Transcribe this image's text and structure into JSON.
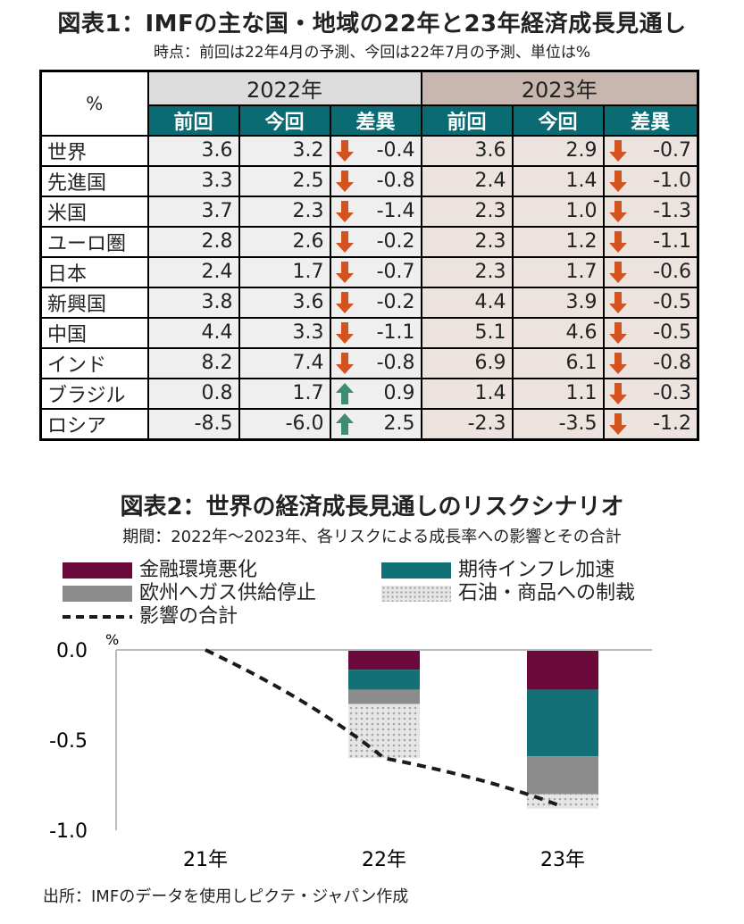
{
  "table": {
    "title": "図表1：IMFの主な国・地域の22年と23年経済成長見通し",
    "subtitle": "時点：前回は22年4月の予測、今回は22年7月の予測、単位は%",
    "unit_header": "%",
    "years": [
      "2022年",
      "2023年"
    ],
    "subheaders": [
      "前回",
      "今回",
      "差異",
      "前回",
      "今回",
      "差異"
    ],
    "rows": [
      {
        "label": "世界",
        "v": [
          "3.6",
          "3.2",
          "-0.4",
          "3.6",
          "2.9",
          "-0.7"
        ]
      },
      {
        "label": "先進国",
        "v": [
          "3.3",
          "2.5",
          "-0.8",
          "2.4",
          "1.4",
          "-1.0"
        ]
      },
      {
        "label": "米国",
        "v": [
          "3.7",
          "2.3",
          "-1.4",
          "2.3",
          "1.0",
          "-1.3"
        ]
      },
      {
        "label": "ユーロ圏",
        "v": [
          "2.8",
          "2.6",
          "-0.2",
          "2.3",
          "1.2",
          "-1.1"
        ]
      },
      {
        "label": "日本",
        "v": [
          "2.4",
          "1.7",
          "-0.7",
          "2.3",
          "1.7",
          "-0.6"
        ]
      },
      {
        "label": "新興国",
        "v": [
          "3.8",
          "3.6",
          "-0.2",
          "4.4",
          "3.9",
          "-0.5"
        ]
      },
      {
        "label": "中国",
        "v": [
          "4.4",
          "3.3",
          "-1.1",
          "5.1",
          "4.6",
          "-0.5"
        ]
      },
      {
        "label": "インド",
        "v": [
          "8.2",
          "7.4",
          "-0.8",
          "6.9",
          "6.1",
          "-0.8"
        ]
      },
      {
        "label": "ブラジル",
        "v": [
          "0.8",
          "1.7",
          "0.9",
          "1.4",
          "1.1",
          "-0.3"
        ]
      },
      {
        "label": "ロシア",
        "v": [
          "-8.5",
          "-6.0",
          "2.5",
          "-2.3",
          "-3.5",
          "-1.2"
        ]
      }
    ],
    "colors": {
      "header": "#0b6b73",
      "year2022_bg": "#dcdcdc",
      "year2023_bg": "#c7b7ae",
      "down_arrow": "#d4521e",
      "up_arrow": "#3f8c74"
    }
  },
  "chart_data": {
    "type": "bar",
    "title": "図表2：世界の経済成長見通しのリスクシナリオ",
    "subtitle": "期間：2022年～2023年、各リスクによる成長率への影響とその合計",
    "categories": [
      "21年",
      "22年",
      "23年"
    ],
    "ylabel": "%",
    "ylim": [
      -1.0,
      0.0
    ],
    "yticks": [
      "0.0",
      "-0.5",
      "-1.0"
    ],
    "stacked": true,
    "series": [
      {
        "name": "金融環境悪化",
        "color": "#6b0a3a",
        "values": [
          0,
          -0.11,
          -0.22
        ]
      },
      {
        "name": "期待インフレ加速",
        "color": "#127076",
        "values": [
          0,
          -0.11,
          -0.37
        ]
      },
      {
        "name": "欧州へガス供給停止",
        "color": "#8c8c8c",
        "values": [
          0,
          -0.08,
          -0.21
        ]
      },
      {
        "name": "石油・商品への制裁",
        "color": "#d9d9d9",
        "values": [
          0,
          -0.3,
          -0.08
        ]
      }
    ],
    "line": {
      "name": "影響の合計",
      "style": "dashed",
      "color": "#1a1a1a",
      "values": [
        0.0,
        -0.6,
        -0.87
      ]
    },
    "grid": false
  },
  "source": "出所：IMFのデータを使用しピクテ・ジャパン作成"
}
